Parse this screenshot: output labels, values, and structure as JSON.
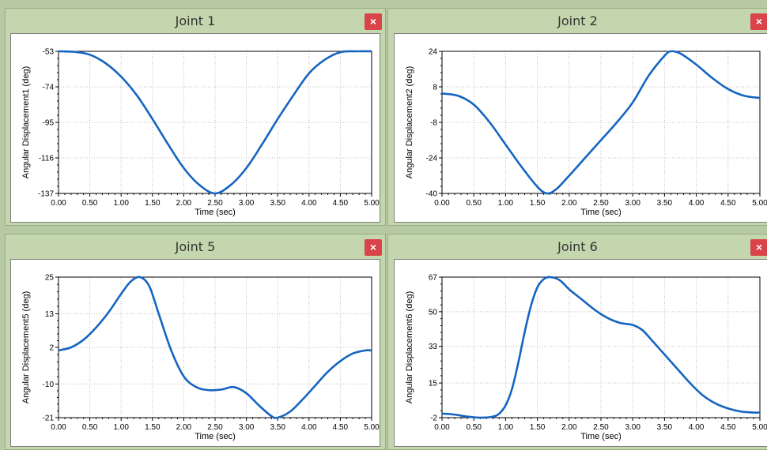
{
  "panels": [
    {
      "title": "Joint 1",
      "close_label": "×",
      "chart_data": {
        "type": "line",
        "title": "Joint 1",
        "xlabel": "Time (sec)",
        "ylabel": "Angular Displacement1 (deg)",
        "xlim": [
          0,
          5
        ],
        "ylim": [
          -137,
          -53
        ],
        "xticks": [
          "0.00",
          "0.50",
          "1.00",
          "1.50",
          "2.00",
          "2.50",
          "3.00",
          "3.50",
          "4.00",
          "4.50",
          "5.00"
        ],
        "yticks": [
          "-53",
          "-74",
          "-95",
          "-116",
          "-137"
        ],
        "grid": true,
        "series": [
          {
            "color": "#1565c0",
            "x": [
              0,
              0.25,
              0.5,
              0.75,
              1.0,
              1.25,
              1.5,
              1.75,
              2.0,
              2.25,
              2.5,
              2.75,
              3.0,
              3.25,
              3.5,
              3.75,
              4.0,
              4.25,
              4.5,
              4.75,
              5.0
            ],
            "y": [
              -53,
              -53.3,
              -55,
              -60,
              -68,
              -79,
              -93,
              -108,
              -122,
              -132,
              -137,
              -132,
              -122,
              -108,
              -93,
              -79,
              -66,
              -58,
              -53.5,
              -53,
              -53
            ]
          }
        ]
      }
    },
    {
      "title": "Joint 2",
      "close_label": "×",
      "chart_data": {
        "type": "line",
        "title": "Joint 2",
        "xlabel": "Time (sec)",
        "ylabel": "Angular Displacement2 (deg)",
        "xlim": [
          0,
          5
        ],
        "ylim": [
          -40,
          24
        ],
        "xticks": [
          "0.00",
          "0.50",
          "1.00",
          "1.50",
          "2.00",
          "2.50",
          "3.00",
          "3.50",
          "4.00",
          "4.50",
          "5.00"
        ],
        "yticks": [
          "24",
          "8",
          "-8",
          "-24",
          "-40"
        ],
        "grid": true,
        "series": [
          {
            "color": "#1565c0",
            "x": [
              0,
              0.25,
              0.5,
              0.75,
              1.0,
              1.25,
              1.5,
              1.65,
              1.8,
              2.0,
              2.25,
              2.5,
              2.75,
              3.0,
              3.25,
              3.5,
              3.6,
              3.75,
              4.0,
              4.25,
              4.5,
              4.75,
              5.0
            ],
            "y": [
              5,
              4,
              0,
              -8,
              -18,
              -28,
              -37,
              -40,
              -38,
              -32,
              -24,
              -16,
              -8,
              1,
              13,
              22,
              24,
              23,
              18,
              12,
              7,
              4,
              3
            ]
          }
        ]
      }
    },
    {
      "title": "Joint 5",
      "close_label": "×",
      "chart_data": {
        "type": "line",
        "title": "Joint 5",
        "xlabel": "Time (sec)",
        "ylabel": "Angular Displacement5 (deg)",
        "xlim": [
          0,
          5
        ],
        "ylim": [
          -21,
          25
        ],
        "xticks": [
          "0.00",
          "0.50",
          "1.00",
          "1.50",
          "2.00",
          "2.50",
          "3.00",
          "3.50",
          "4.00",
          "4.50",
          "5.00"
        ],
        "yticks": [
          "25",
          "13",
          "2",
          "-10",
          "-21"
        ],
        "grid": true,
        "series": [
          {
            "color": "#1565c0",
            "x": [
              0,
              0.2,
              0.4,
              0.6,
              0.8,
              1.0,
              1.15,
              1.3,
              1.45,
              1.6,
              1.8,
              2.0,
              2.2,
              2.4,
              2.6,
              2.8,
              3.0,
              3.2,
              3.4,
              3.5,
              3.7,
              3.9,
              4.1,
              4.3,
              4.5,
              4.7,
              4.9,
              5.0
            ],
            "y": [
              1,
              2,
              4.5,
              8.5,
              13.5,
              19.5,
              23.5,
              25,
              22,
              13,
              1,
              -7.5,
              -11,
              -12,
              -11.8,
              -11,
              -13,
              -17,
              -20.5,
              -21,
              -19,
              -15,
              -10.5,
              -6,
              -2.5,
              0,
              1,
              1
            ]
          }
        ]
      }
    },
    {
      "title": "Joint 6",
      "close_label": "×",
      "chart_data": {
        "type": "line",
        "title": "Joint 6",
        "xlabel": "Time (sec)",
        "ylabel": "Angular Displacement6 (deg)",
        "xlim": [
          0,
          5
        ],
        "ylim": [
          -2,
          67
        ],
        "xticks": [
          "0.00",
          "0.50",
          "1.00",
          "1.50",
          "2.00",
          "2.50",
          "3.00",
          "3.50",
          "4.00",
          "4.50",
          "5.00"
        ],
        "yticks": [
          "67",
          "50",
          "33",
          "15",
          "-2"
        ],
        "grid": true,
        "series": [
          {
            "color": "#1565c0",
            "x": [
              0,
              0.2,
              0.4,
              0.6,
              0.8,
              0.9,
              1.0,
              1.1,
              1.2,
              1.3,
              1.4,
              1.5,
              1.6,
              1.7,
              1.85,
              2.0,
              2.2,
              2.4,
              2.6,
              2.8,
              3.0,
              3.15,
              3.3,
              3.5,
              3.7,
              3.9,
              4.1,
              4.3,
              4.5,
              4.7,
              4.9,
              5.0
            ],
            "y": [
              0,
              -0.5,
              -1.5,
              -2,
              -1.5,
              0,
              4,
              12,
              25,
              40,
              53,
              62,
              66,
              67,
              65.5,
              61,
              56,
              51,
              47,
              44.5,
              43.5,
              41,
              36,
              29,
              22,
              15,
              9,
              5,
              2.5,
              1,
              0.5,
              0.5
            ]
          }
        ]
      }
    }
  ]
}
